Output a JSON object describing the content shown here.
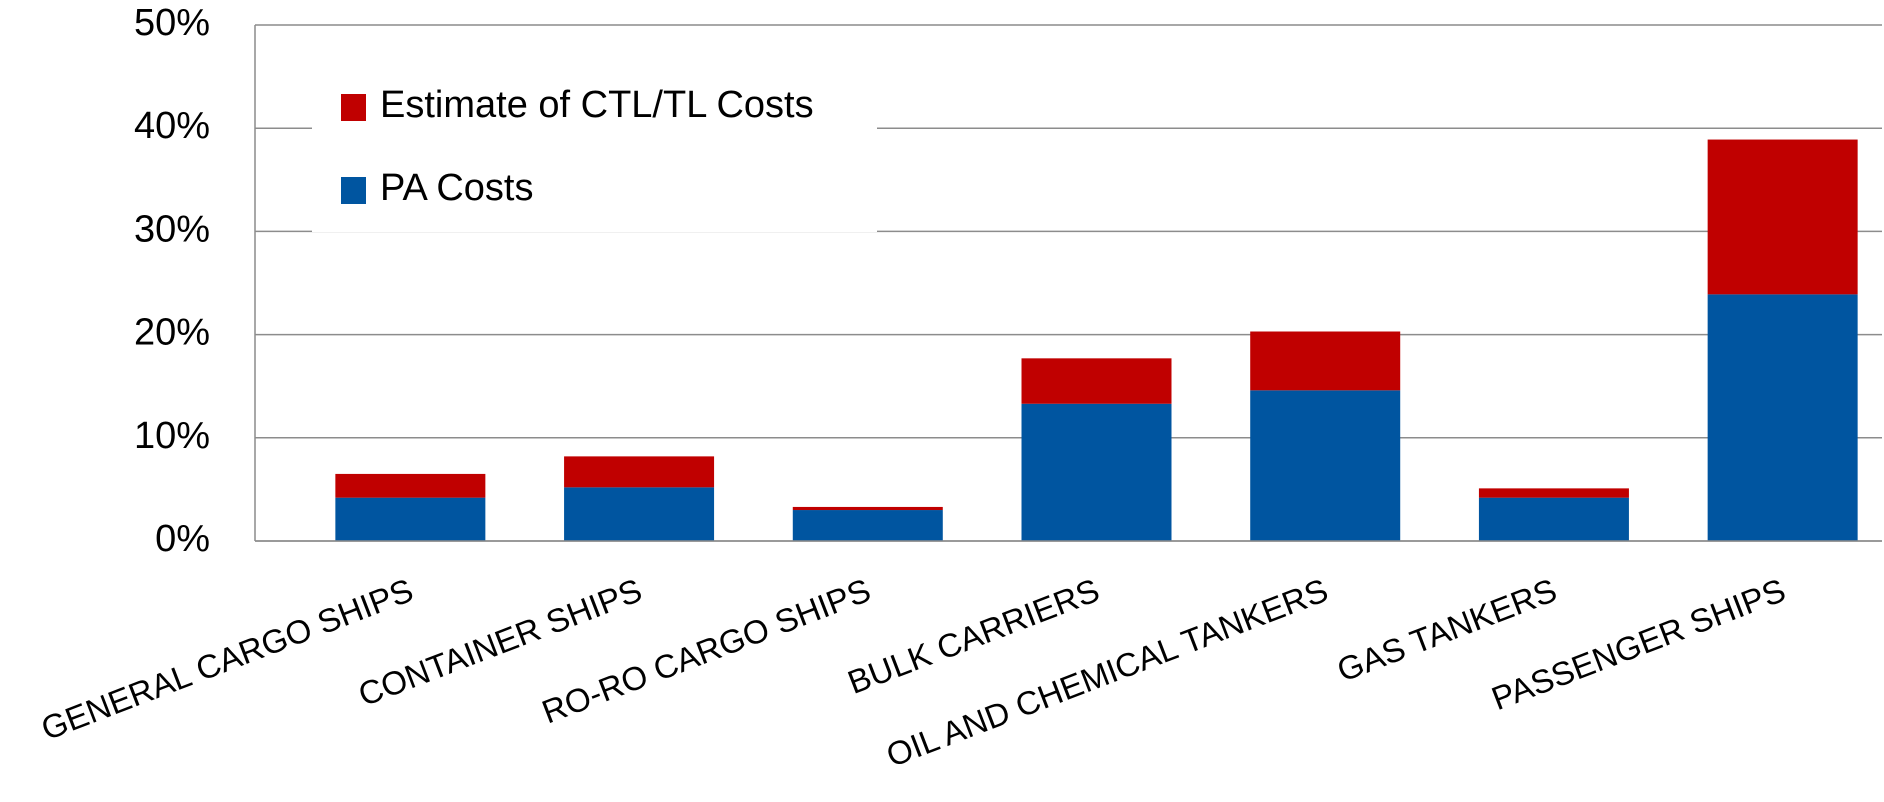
{
  "chart_data": {
    "type": "stacked_bar",
    "categories": [
      "GENERAL CARGO SHIPS",
      "CONTAINER SHIPS",
      "RO-RO CARGO SHIPS",
      "BULK CARRIERS",
      "OIL AND CHEMICAL TANKERS",
      "GAS TANKERS",
      "PASSENGER SHIPS"
    ],
    "series": [
      {
        "name": "PA Costs",
        "color": "#0055a0",
        "values": [
          4.2,
          5.2,
          3.0,
          13.3,
          14.6,
          4.2,
          23.9
        ]
      },
      {
        "name": "Estimate of CTL/TL Costs",
        "color": "#c00000",
        "values": [
          2.3,
          3.0,
          0.3,
          4.4,
          5.7,
          0.9,
          15.0
        ]
      }
    ],
    "ylim": [
      0,
      50
    ],
    "yticks": [
      {
        "value": 0,
        "label": "0%"
      },
      {
        "value": 10,
        "label": "10%"
      },
      {
        "value": 20,
        "label": "20%"
      },
      {
        "value": 30,
        "label": "30%"
      },
      {
        "value": 40,
        "label": "40%"
      },
      {
        "value": 50,
        "label": "50%"
      }
    ],
    "grid": true,
    "legend": "upper left"
  }
}
